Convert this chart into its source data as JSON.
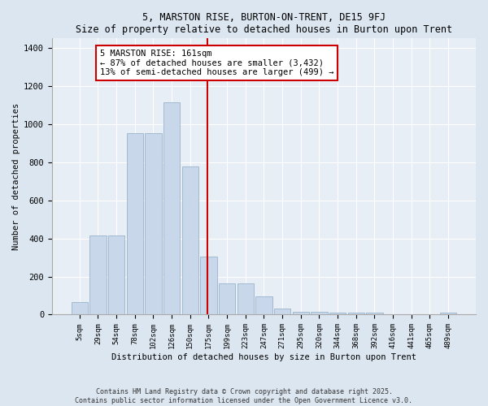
{
  "title": "5, MARSTON RISE, BURTON-ON-TRENT, DE15 9FJ",
  "subtitle": "Size of property relative to detached houses in Burton upon Trent",
  "xlabel": "Distribution of detached houses by size in Burton upon Trent",
  "ylabel": "Number of detached properties",
  "categories": [
    "5sqm",
    "29sqm",
    "54sqm",
    "78sqm",
    "102sqm",
    "126sqm",
    "150sqm",
    "175sqm",
    "199sqm",
    "223sqm",
    "247sqm",
    "271sqm",
    "295sqm",
    "320sqm",
    "344sqm",
    "368sqm",
    "392sqm",
    "416sqm",
    "441sqm",
    "465sqm",
    "489sqm"
  ],
  "bar_values": [
    65,
    415,
    415,
    950,
    950,
    1115,
    775,
    305,
    165,
    165,
    95,
    30,
    15,
    15,
    12,
    12,
    10,
    0,
    0,
    0,
    10
  ],
  "bar_color": "#c8d8ea",
  "bar_edge_color": "#9ab4cc",
  "vline_x": 7.5,
  "vline_color": "#cc0000",
  "annotation_text": "5 MARSTON RISE: 161sqm\n← 87% of detached houses are smaller (3,432)\n13% of semi-detached houses are larger (499) →",
  "annotation_box_color": "#ffffff",
  "annotation_box_edge": "#cc0000",
  "ylim": [
    0,
    1450
  ],
  "yticks": [
    0,
    200,
    400,
    600,
    800,
    1000,
    1200,
    1400
  ],
  "footer_line1": "Contains HM Land Registry data © Crown copyright and database right 2025.",
  "footer_line2": "Contains public sector information licensed under the Open Government Licence v3.0.",
  "bg_color": "#dce6f0",
  "plot_bg_color": "#e8eef6",
  "grid_color": "#ffffff"
}
